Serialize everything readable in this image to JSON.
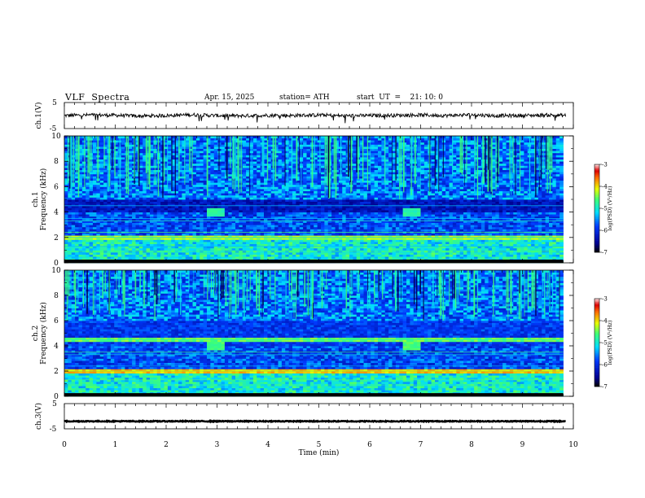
{
  "header": {
    "title": "VLF  Spectra",
    "date": "Apr. 15, 2025",
    "station": "station= ATH",
    "start": "start  UT  =    21: 10: 0"
  },
  "chart_data": [
    {
      "type": "line",
      "id": "ch1",
      "title": "",
      "xlabel": "",
      "ylabel": "ch.1(V)",
      "xlim": [
        0,
        10
      ],
      "ylim": [
        -5,
        5
      ],
      "y_ticks": [
        "5",
        "-5"
      ],
      "x": [
        0.0,
        0.5,
        1.0,
        1.5,
        2.0,
        2.5,
        3.0,
        3.5,
        4.0,
        4.5,
        5.0,
        5.5,
        6.0,
        6.5,
        7.0,
        7.5,
        8.0,
        8.5,
        9.0,
        9.5,
        9.85
      ],
      "values": [
        0.0,
        0.2,
        0.1,
        -0.2,
        0.0,
        0.3,
        0.0,
        -0.1,
        0.1,
        0.0,
        0.2,
        -0.1,
        0.0,
        0.1,
        0.2,
        0.0,
        0.3,
        -0.1,
        0.0,
        0.2,
        0.0
      ]
    },
    {
      "type": "heatmap",
      "id": "ch1-spectrogram",
      "title": "",
      "xlabel": "",
      "ylabel": "ch.1\nFrequency  (kHz)",
      "xlim": [
        0,
        10
      ],
      "ylim": [
        0,
        10
      ],
      "y_ticks": [
        "0",
        "2",
        "4",
        "6",
        "8",
        "10"
      ],
      "colorbar": {
        "label": "log(PSD) (V²/Hz)",
        "range": [
          -7,
          -3
        ],
        "ticks": [
          "-3",
          "-4",
          "-5",
          "-6",
          "-7"
        ]
      },
      "data_extent_min": 9.8,
      "features": [
        {
          "name": "broadband-sferics",
          "freq_khz": [
            5.0,
            10.0
          ],
          "log_psd": -5.2
        },
        {
          "name": "band-gap",
          "freq_khz": [
            4.0,
            5.0
          ],
          "log_psd": -6.3
        },
        {
          "name": "narrowband-2khz",
          "freq_khz": 2.0,
          "log_psd": -4.3
        },
        {
          "name": "burst-1",
          "time_min": [
            2.8,
            3.15
          ],
          "freq_khz": [
            3.6,
            4.3
          ],
          "log_psd": -4.8
        },
        {
          "name": "burst-2",
          "time_min": [
            6.6,
            6.95
          ],
          "freq_khz": [
            3.6,
            4.3
          ],
          "log_psd": -4.8
        }
      ]
    },
    {
      "type": "heatmap",
      "id": "ch2-spectrogram",
      "title": "",
      "xlabel": "",
      "ylabel": "ch.2\nFrequency  (kHz)",
      "xlim": [
        0,
        10
      ],
      "ylim": [
        0,
        10
      ],
      "y_ticks": [
        "0",
        "2",
        "4",
        "6",
        "8",
        "10"
      ],
      "colorbar": {
        "label": "log(PSD) (V²/Hz)",
        "range": [
          -7,
          -3
        ],
        "ticks": [
          "-3",
          "-4",
          "-5",
          "-6",
          "-7"
        ]
      },
      "data_extent_min": 9.8,
      "features": [
        {
          "name": "broadband-sferics",
          "freq_khz": [
            6.0,
            10.0
          ],
          "log_psd": -5.4
        },
        {
          "name": "narrowband-4.5khz",
          "freq_khz": 4.5,
          "log_psd": -4.5
        },
        {
          "name": "narrowband-2khz",
          "freq_khz": 2.0,
          "log_psd": -3.9
        },
        {
          "name": "burst-1",
          "time_min": [
            2.8,
            3.15
          ],
          "freq_khz": [
            3.6,
            4.3
          ],
          "log_psd": -4.6
        },
        {
          "name": "burst-2",
          "time_min": [
            6.6,
            6.95
          ],
          "freq_khz": [
            3.6,
            4.3
          ],
          "log_psd": -4.6
        }
      ]
    },
    {
      "type": "line",
      "id": "ch3",
      "title": "",
      "xlabel": "Time  (min)",
      "ylabel": "ch.3(V)",
      "xlim": [
        0,
        10
      ],
      "ylim": [
        -5,
        5
      ],
      "y_ticks": [
        "5",
        "-5"
      ],
      "x_ticks": [
        "0",
        "1",
        "2",
        "3",
        "4",
        "5",
        "6",
        "7",
        "8",
        "9",
        "10"
      ],
      "x": [
        0.0,
        9.85
      ],
      "values": [
        -2.0,
        -2.0
      ]
    }
  ]
}
